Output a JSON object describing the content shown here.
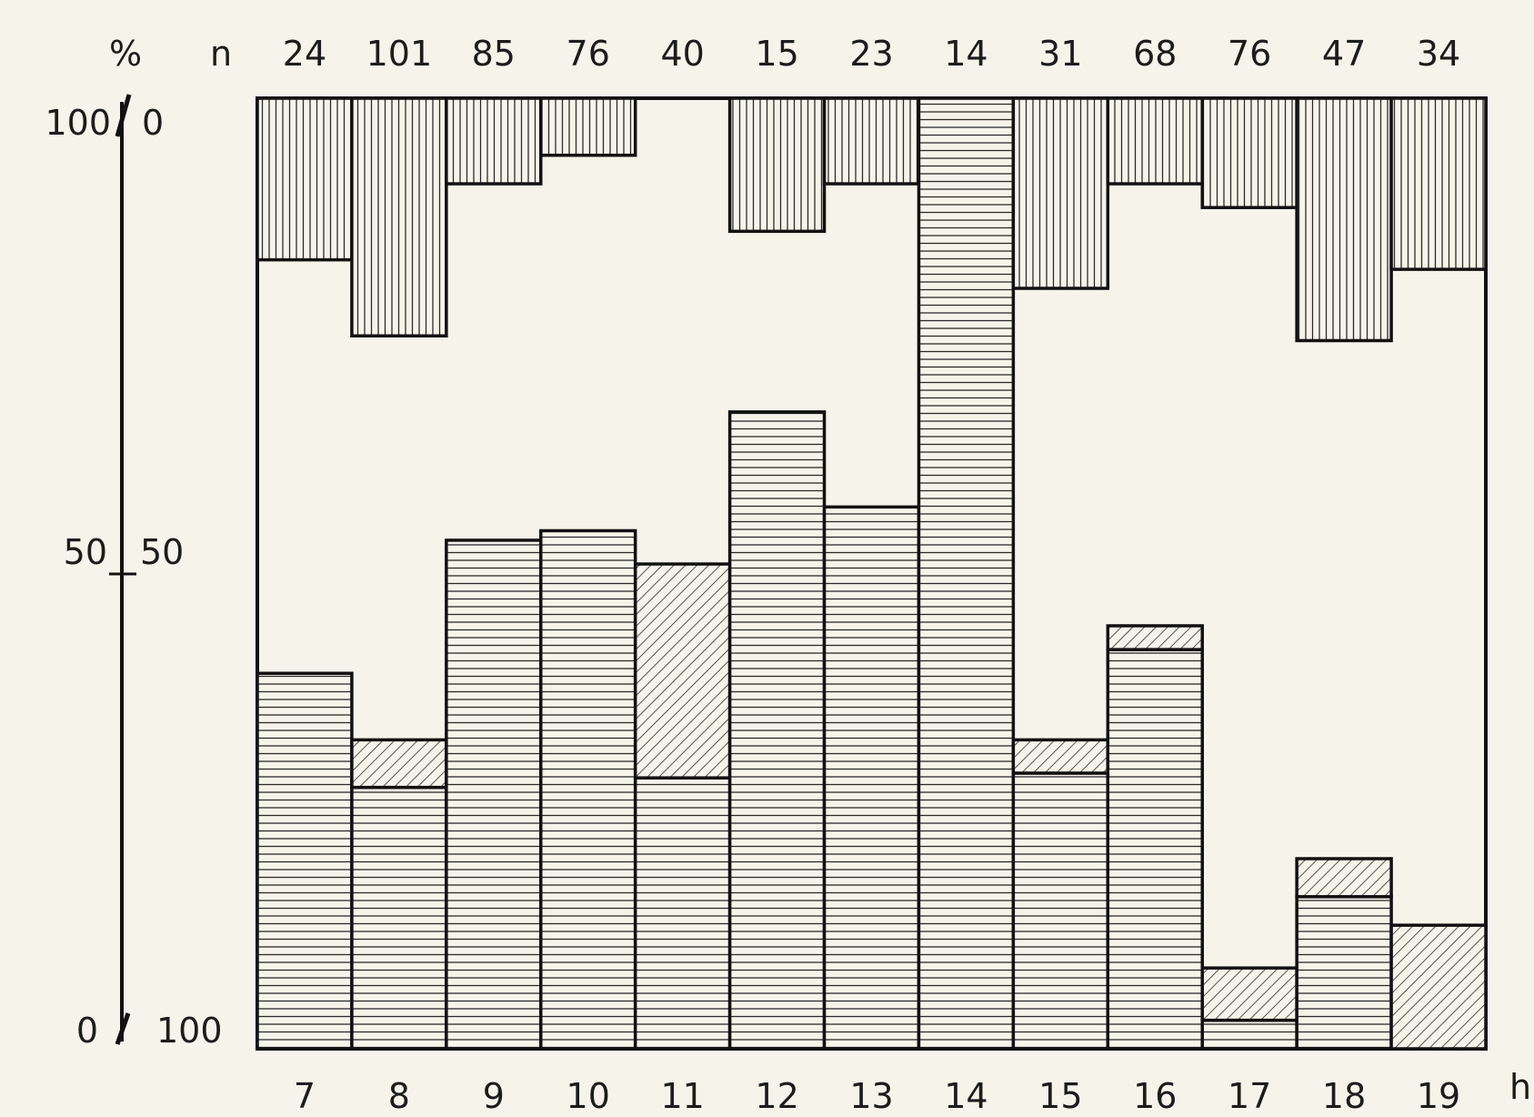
{
  "chart_data": {
    "type": "bar",
    "stacked": true,
    "header": {
      "percent_label": "%",
      "n_label": "n"
    },
    "hour_unit": "h",
    "left_axis": {
      "ticks": [
        "100",
        "50",
        "0"
      ],
      "range": [
        0,
        100
      ]
    },
    "right_axis": {
      "ticks": [
        "0",
        "50",
        "100"
      ],
      "range": [
        0,
        100
      ],
      "inverted": true
    },
    "categories": [
      "7",
      "8",
      "9",
      "10",
      "11",
      "12",
      "13",
      "14",
      "15",
      "16",
      "17",
      "18",
      "19"
    ],
    "n": [
      "24",
      "101",
      "85",
      "76",
      "40",
      "15",
      "23",
      "14",
      "31",
      "68",
      "76",
      "47",
      "34"
    ],
    "series": [
      {
        "pattern": "horizontal",
        "values": [
          39.5,
          27.5,
          53.5,
          54.5,
          28.5,
          67,
          57,
          100,
          29,
          42,
          3,
          16,
          0
        ]
      },
      {
        "pattern": "diagonal",
        "values": [
          0,
          5,
          0,
          0,
          22.5,
          0,
          0,
          0,
          3.5,
          2.5,
          5.5,
          4,
          13
        ]
      },
      {
        "pattern": "vertical_from_top",
        "values": [
          17,
          25,
          9,
          6,
          0,
          14,
          9,
          0,
          20,
          9,
          11.5,
          25.5,
          18
        ]
      }
    ]
  }
}
